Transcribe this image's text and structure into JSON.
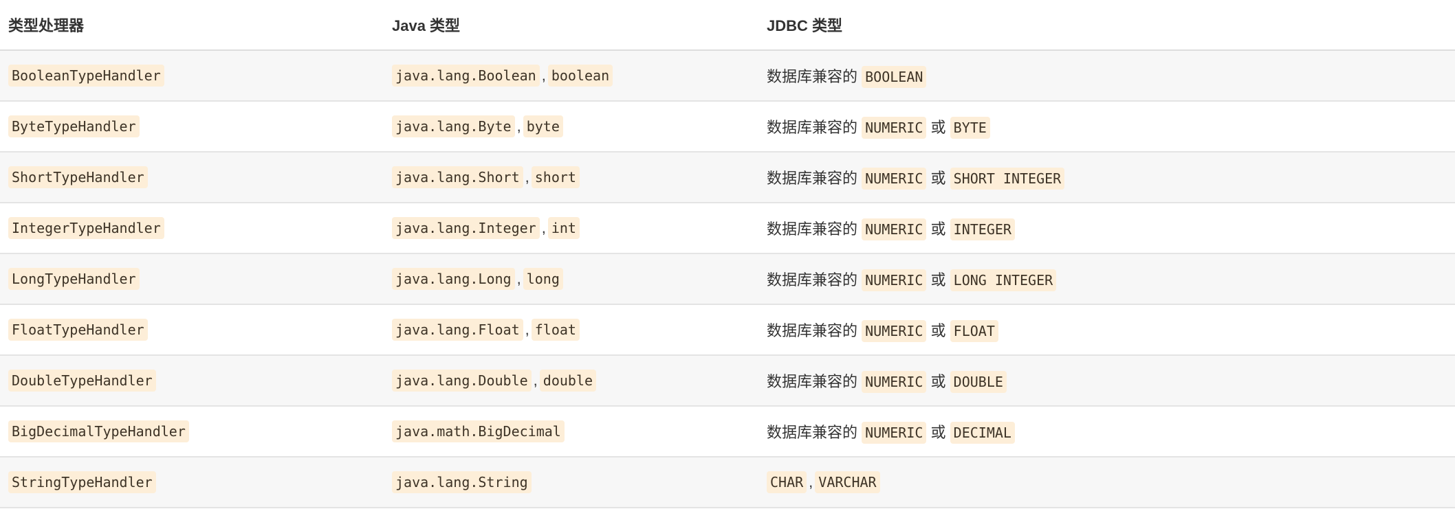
{
  "headers": [
    "类型处理器",
    "Java 类型",
    "JDBC 类型"
  ],
  "rows": [
    [
      [
        {
          "c": "BooleanTypeHandler"
        }
      ],
      [
        {
          "c": "java.lang.Boolean"
        },
        {
          "t": ","
        },
        {
          "c": "boolean"
        }
      ],
      [
        {
          "t": "数据库兼容的 "
        },
        {
          "c": "BOOLEAN"
        }
      ]
    ],
    [
      [
        {
          "c": "ByteTypeHandler"
        }
      ],
      [
        {
          "c": "java.lang.Byte"
        },
        {
          "t": ","
        },
        {
          "c": "byte"
        }
      ],
      [
        {
          "t": "数据库兼容的 "
        },
        {
          "c": "NUMERIC"
        },
        {
          "t": " 或 "
        },
        {
          "c": "BYTE"
        }
      ]
    ],
    [
      [
        {
          "c": "ShortTypeHandler"
        }
      ],
      [
        {
          "c": "java.lang.Short"
        },
        {
          "t": ","
        },
        {
          "c": "short"
        }
      ],
      [
        {
          "t": "数据库兼容的 "
        },
        {
          "c": "NUMERIC"
        },
        {
          "t": " 或 "
        },
        {
          "c": "SHORT INTEGER"
        }
      ]
    ],
    [
      [
        {
          "c": "IntegerTypeHandler"
        }
      ],
      [
        {
          "c": "java.lang.Integer"
        },
        {
          "t": ","
        },
        {
          "c": "int"
        }
      ],
      [
        {
          "t": "数据库兼容的 "
        },
        {
          "c": "NUMERIC"
        },
        {
          "t": " 或 "
        },
        {
          "c": "INTEGER"
        }
      ]
    ],
    [
      [
        {
          "c": "LongTypeHandler"
        }
      ],
      [
        {
          "c": "java.lang.Long"
        },
        {
          "t": ","
        },
        {
          "c": "long"
        }
      ],
      [
        {
          "t": "数据库兼容的 "
        },
        {
          "c": "NUMERIC"
        },
        {
          "t": " 或 "
        },
        {
          "c": "LONG INTEGER"
        }
      ]
    ],
    [
      [
        {
          "c": "FloatTypeHandler"
        }
      ],
      [
        {
          "c": "java.lang.Float"
        },
        {
          "t": ","
        },
        {
          "c": "float"
        }
      ],
      [
        {
          "t": "数据库兼容的 "
        },
        {
          "c": "NUMERIC"
        },
        {
          "t": " 或 "
        },
        {
          "c": "FLOAT"
        }
      ]
    ],
    [
      [
        {
          "c": "DoubleTypeHandler"
        }
      ],
      [
        {
          "c": "java.lang.Double"
        },
        {
          "t": ","
        },
        {
          "c": "double"
        }
      ],
      [
        {
          "t": "数据库兼容的 "
        },
        {
          "c": "NUMERIC"
        },
        {
          "t": " 或 "
        },
        {
          "c": "DOUBLE"
        }
      ]
    ],
    [
      [
        {
          "c": "BigDecimalTypeHandler"
        }
      ],
      [
        {
          "c": "java.math.BigDecimal"
        }
      ],
      [
        {
          "t": "数据库兼容的 "
        },
        {
          "c": "NUMERIC"
        },
        {
          "t": " 或 "
        },
        {
          "c": "DECIMAL"
        }
      ]
    ],
    [
      [
        {
          "c": "StringTypeHandler"
        }
      ],
      [
        {
          "c": "java.lang.String"
        }
      ],
      [
        {
          "c": "CHAR"
        },
        {
          "t": ","
        },
        {
          "c": "VARCHAR"
        }
      ]
    ]
  ]
}
